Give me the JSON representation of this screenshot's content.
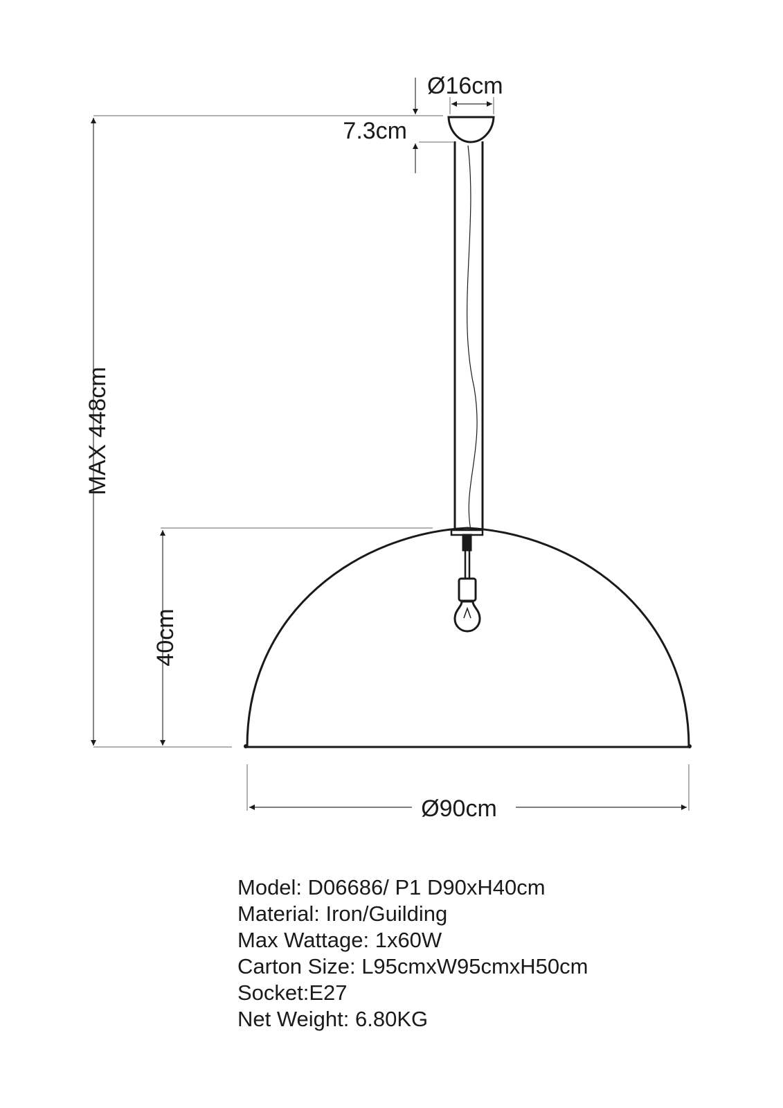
{
  "dimensions": {
    "canopy_diameter": "Ø16cm",
    "canopy_height": "7.3cm",
    "max_height": "MAX 448cm",
    "shade_height": "40cm",
    "shade_diameter": "Ø90cm"
  },
  "specs": [
    "Model: D06686/ P1 D90xH40cm",
    "Material: Iron/Guilding",
    "Max Wattage: 1x60W",
    "Carton Size: L95cmxW95cmxH50cm",
    "Socket:E27",
    "Net Weight: 6.80KG"
  ],
  "colors": {
    "line": "#1a1a1a",
    "dimension_line": "#555555"
  }
}
